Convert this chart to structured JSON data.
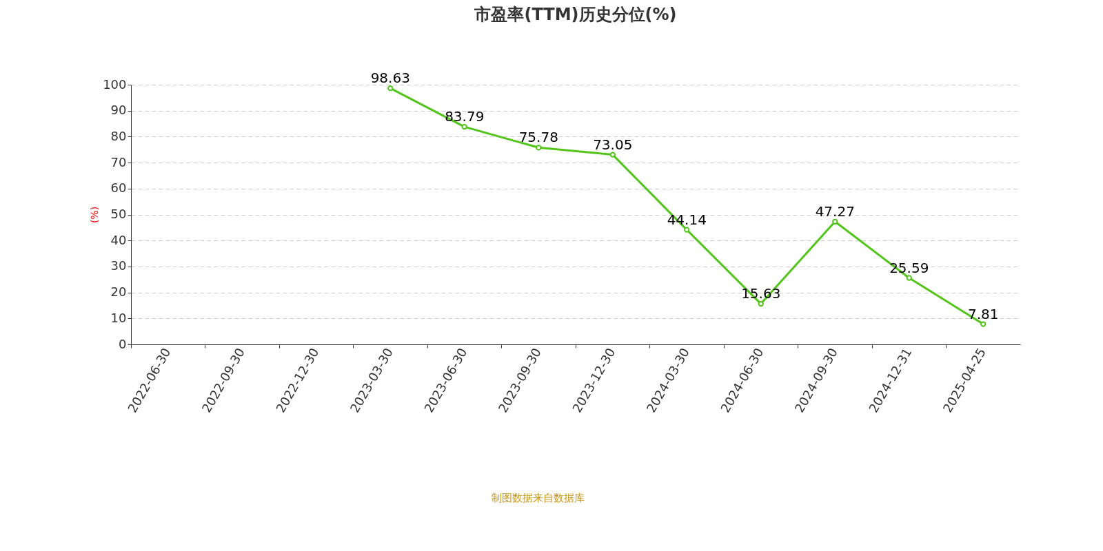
{
  "chart_data": {
    "type": "line",
    "title": "市盈率(TTM)历史分位(%)",
    "ylabel": "(%)",
    "categories": [
      "2022-06-30",
      "2022-09-30",
      "2022-12-30",
      "2023-03-30",
      "2023-06-30",
      "2023-09-30",
      "2023-12-30",
      "2024-03-30",
      "2024-06-30",
      "2024-09-30",
      "2024-12-31",
      "2025-04-25"
    ],
    "series": [
      {
        "color": "#52c41a",
        "values": [
          null,
          null,
          null,
          98.63,
          83.79,
          75.78,
          73.05,
          44.14,
          15.63,
          47.27,
          25.59,
          7.81
        ]
      }
    ],
    "ylim": [
      0,
      100
    ],
    "yticks": [
      0,
      10,
      20,
      30,
      40,
      50,
      60,
      70,
      80,
      90,
      100
    ],
    "grid": "y",
    "marker": "circle",
    "line_style": "solid",
    "data_labels": true,
    "annotations": [
      "制图数据来自数据库"
    ]
  }
}
